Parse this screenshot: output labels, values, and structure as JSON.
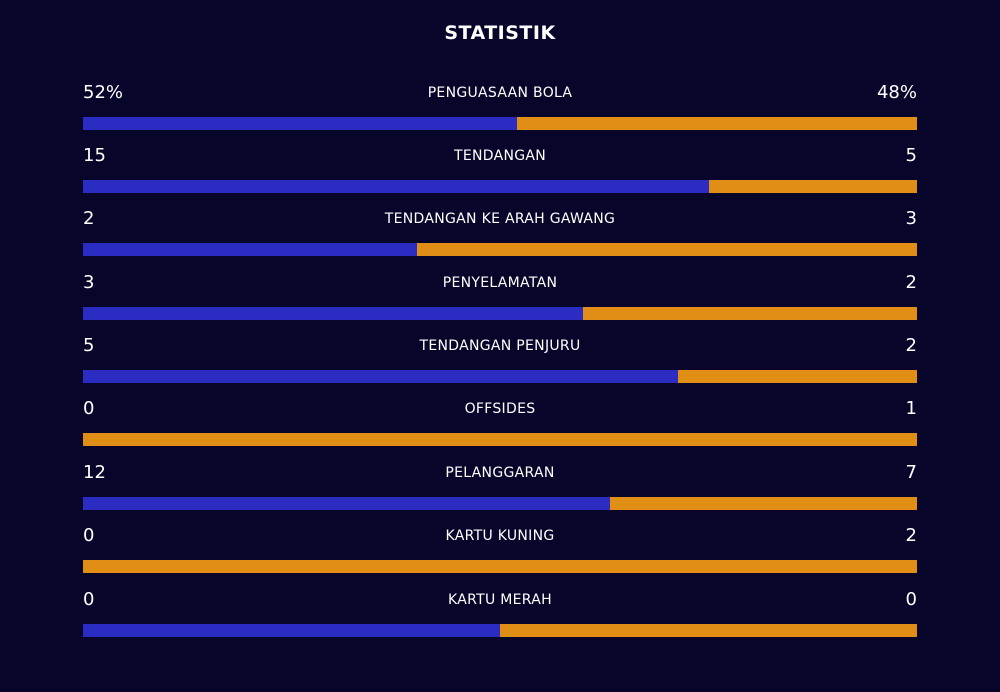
{
  "title": "STATISTIK",
  "colors": {
    "background": "#07062a",
    "home": "#2a2cc2",
    "away": "#e08e16",
    "text": "#ffffff"
  },
  "stats": [
    {
      "label": "PENGUASAAN BOLA",
      "home": "52%",
      "away": "48%",
      "home_share": 0.52
    },
    {
      "label": "TENDANGAN",
      "home": "15",
      "away": "5",
      "home_share": 0.75
    },
    {
      "label": "TENDANGAN KE ARAH GAWANG",
      "home": "2",
      "away": "3",
      "home_share": 0.4
    },
    {
      "label": "PENYELAMATAN",
      "home": "3",
      "away": "2",
      "home_share": 0.6
    },
    {
      "label": "TENDANGAN PENJURU",
      "home": "5",
      "away": "2",
      "home_share": 0.714
    },
    {
      "label": "OFFSIDES",
      "home": "0",
      "away": "1",
      "home_share": 0
    },
    {
      "label": "PELANGGARAN",
      "home": "12",
      "away": "7",
      "home_share": 0.632
    },
    {
      "label": "KARTU KUNING",
      "home": "0",
      "away": "2",
      "home_share": 0
    },
    {
      "label": "KARTU MERAH",
      "home": "0",
      "away": "0",
      "home_share": 0.5
    }
  ]
}
